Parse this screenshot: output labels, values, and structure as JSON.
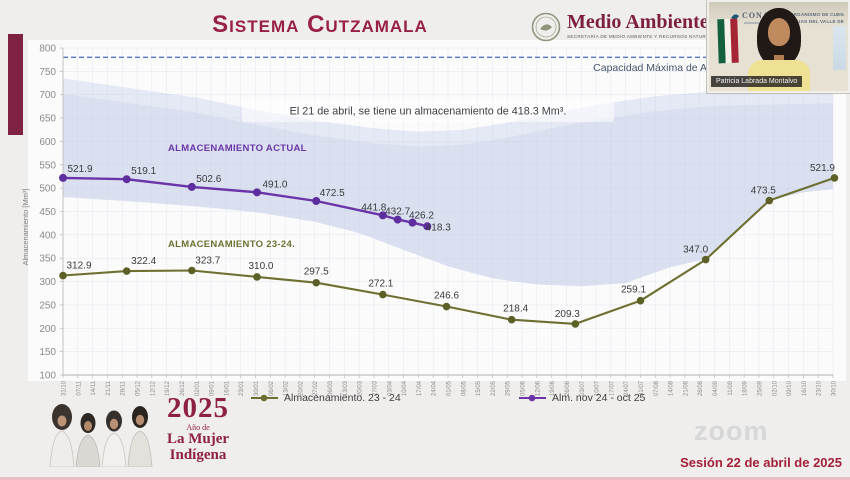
{
  "header": {
    "title": "Sistema Cutzamala",
    "logo": {
      "name": "Medio Ambiente",
      "subtitle": "SECRETARÍA DE MEDIO AMBIENTE Y RECURSOS NATURALES"
    }
  },
  "webcam": {
    "conagua": "CONAGUA",
    "org_line1": "ORGANISMO DE CUEN",
    "org_line2": "AGUAS DEL VALLE DE",
    "name_tag": "Patricia Labrada Montalvo"
  },
  "chart_data": {
    "type": "line",
    "ylabel": "Almacenamiento [Mm³]",
    "ylim": [
      100,
      800
    ],
    "ytick_step": 50,
    "grid": true,
    "annotation": "El 21 de abril, se tiene un almacenamiento de 418.3 Mm³.",
    "capacity_line": {
      "value": 780,
      "label": "Capacidad Máxima de A"
    },
    "x_labels": [
      "31/10",
      "07/11",
      "14/11",
      "21/11",
      "28/11",
      "05/12",
      "12/12",
      "19/12",
      "26/12",
      "02/01",
      "09/01",
      "16/01",
      "23/01",
      "30/01",
      "06/02",
      "13/02",
      "20/02",
      "27/02",
      "06/03",
      "13/03",
      "20/03",
      "27/03",
      "03/04",
      "10/04",
      "17/04",
      "24/04",
      "01/05",
      "08/05",
      "15/05",
      "22/05",
      "29/05",
      "05/06",
      "12/06",
      "19/06",
      "26/06",
      "03/07",
      "10/07",
      "17/07",
      "24/07",
      "31/07",
      "07/08",
      "14/08",
      "21/08",
      "28/08",
      "04/09",
      "11/09",
      "18/09",
      "25/09",
      "02/10",
      "09/10",
      "16/10",
      "23/10",
      "30/10"
    ],
    "series": [
      {
        "name": "Almacenamiento. 23 - 24",
        "inline_label": "ALMACENAMIENTO 23-24.",
        "color": "#6d7030",
        "dot_color": "#5c6026",
        "inline_pos": [
          148,
          205
        ],
        "points": [
          [
            0,
            312.9,
            16,
            -7
          ],
          [
            4.3,
            322.4,
            17,
            -7
          ],
          [
            8.7,
            323.7,
            16,
            -7
          ],
          [
            13.1,
            310.0,
            4,
            -8
          ],
          [
            17.1,
            297.5,
            0,
            -8
          ],
          [
            21.6,
            272.1,
            -2,
            -8
          ],
          [
            25.9,
            246.6,
            0,
            -8
          ],
          [
            30.3,
            218.4,
            4,
            -8
          ],
          [
            34.6,
            209.3,
            -8,
            -7
          ],
          [
            39,
            259.1,
            -7,
            -8
          ],
          [
            43.4,
            347.0,
            -10,
            -7
          ],
          [
            47.7,
            473.5,
            -6,
            -7
          ],
          [
            52.1,
            521.9,
            -12,
            -7
          ]
        ]
      },
      {
        "name": "Alm. nov 24 - oct 25",
        "inline_label": "ALMACENAMIENTO ACTUAL",
        "color": "#6a35a8",
        "dot_color": "#5e2d9e",
        "inline_pos": [
          148,
          109
        ],
        "points": [
          [
            0,
            521.9,
            17,
            -6
          ],
          [
            4.3,
            519.1,
            17,
            -5
          ],
          [
            8.7,
            502.6,
            17,
            -5
          ],
          [
            13.1,
            491.0,
            18,
            -5
          ],
          [
            17.1,
            472.5,
            16,
            -5
          ],
          [
            21.6,
            441.8,
            -9,
            -5
          ],
          [
            22.6,
            432.7,
            0,
            -5
          ],
          [
            23.6,
            426.2,
            9,
            -4
          ],
          [
            24.6,
            418.3,
            11,
            4
          ]
        ]
      }
    ],
    "band": {
      "color_outer": "#e5e9f5",
      "color_inner": "#d8dfef",
      "upper_outer": [
        [
          0,
          735
        ],
        [
          5,
          712
        ],
        [
          9,
          694
        ],
        [
          13,
          668
        ],
        [
          17,
          645
        ],
        [
          21,
          628
        ],
        [
          24,
          621
        ],
        [
          27,
          625
        ],
        [
          30,
          640
        ],
        [
          33,
          660
        ],
        [
          36,
          678
        ],
        [
          40,
          697
        ],
        [
          44,
          707
        ],
        [
          48,
          710
        ],
        [
          52,
          713
        ]
      ],
      "upper_inner": [
        [
          0,
          702
        ],
        [
          5,
          680
        ],
        [
          9,
          662
        ],
        [
          13,
          636
        ],
        [
          17,
          613
        ],
        [
          21,
          596
        ],
        [
          24,
          589
        ],
        [
          27,
          593
        ],
        [
          30,
          608
        ],
        [
          33,
          628
        ],
        [
          36,
          646
        ],
        [
          40,
          665
        ],
        [
          44,
          676
        ],
        [
          48,
          679
        ],
        [
          52,
          682
        ]
      ],
      "lower": [
        [
          0,
          481
        ],
        [
          5,
          471
        ],
        [
          9,
          461
        ],
        [
          13,
          449
        ],
        [
          17,
          428
        ],
        [
          20,
          404
        ],
        [
          23,
          368
        ],
        [
          26,
          333
        ],
        [
          29,
          307
        ],
        [
          32,
          294
        ],
        [
          35,
          290
        ],
        [
          38,
          297
        ],
        [
          41,
          331
        ],
        [
          43.4,
          348
        ],
        [
          45,
          392
        ],
        [
          47.7,
          474
        ],
        [
          50,
          491
        ],
        [
          52,
          498
        ]
      ]
    }
  },
  "footer": {
    "year": "2025",
    "year_sub": "Año de",
    "title_line1": "La Mujer",
    "title_line2": "Indígena",
    "session": "Sesión 22 de abril de 2025",
    "watermark": "zoom"
  }
}
